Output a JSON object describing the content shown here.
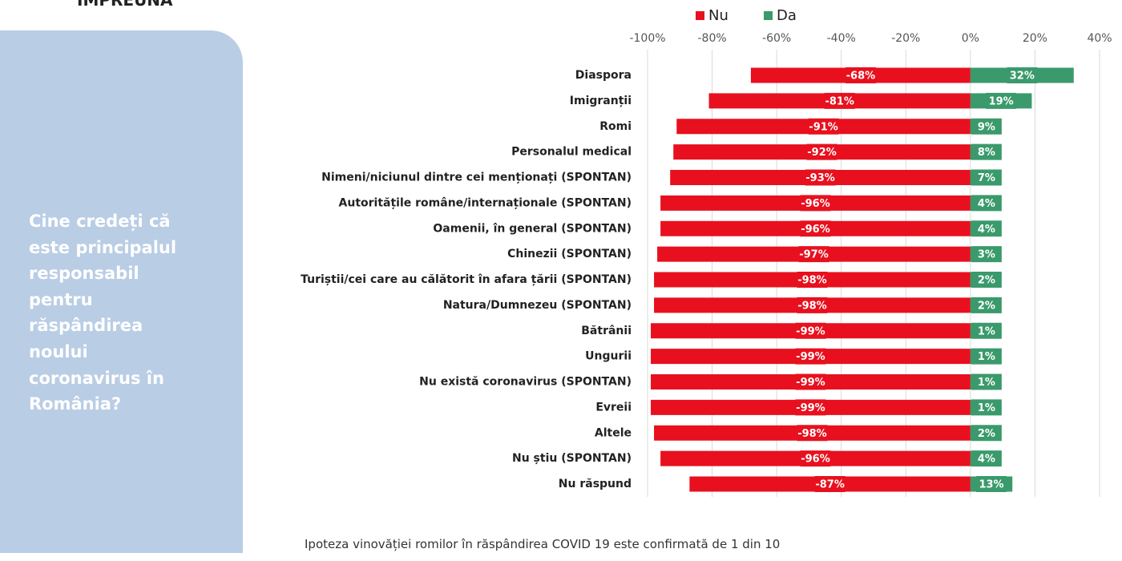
{
  "header": {
    "title": "ÎMPREUNĂ"
  },
  "panel": {
    "question": "Cine credeți că este principalul responsabil pentru răspândirea noului coronavirus în România?"
  },
  "chart_data": {
    "type": "bar",
    "orientation": "horizontal",
    "stacked": true,
    "categories": [
      "Diaspora",
      "Imigranții",
      "Romi",
      "Personalul medical",
      "Nimeni/niciunul dintre cei menționați (SPONTAN)",
      "Autoritățile române/internaționale (SPONTAN)",
      "Oamenii, în general (SPONTAN)",
      "Chinezii (SPONTAN)",
      "Turiștii/cei care au călătorit în afara țării (SPONTAN)",
      "Natura/Dumnezeu (SPONTAN)",
      "Bătrânii",
      "Ungurii",
      "Nu există coronavirus (SPONTAN)",
      "Evreii",
      "Altele",
      "Nu știu (SPONTAN)",
      "Nu răspund"
    ],
    "series": [
      {
        "name": "Nu",
        "color": "#e8101e",
        "values": [
          -68,
          -81,
          -91,
          -92,
          -93,
          -96,
          -96,
          -97,
          -98,
          -98,
          -99,
          -99,
          -99,
          -99,
          -98,
          -96,
          -87
        ],
        "value_labels": [
          "-68%",
          "-81%",
          "-91%",
          "-92%",
          "-93%",
          "-96%",
          "-96%",
          "-97%",
          "-98%",
          "-98%",
          "-99%",
          "-99%",
          "-99%",
          "-99%",
          "-98%",
          "-96%",
          "-87%"
        ]
      },
      {
        "name": "Da",
        "color": "#3a9a6c",
        "values": [
          32,
          19,
          9,
          8,
          7,
          4,
          4,
          3,
          2,
          2,
          1,
          1,
          1,
          1,
          2,
          4,
          13
        ],
        "value_labels": [
          "32%",
          "19%",
          "9%",
          "8%",
          "7%",
          "4%",
          "4%",
          "3%",
          "2%",
          "2%",
          "1%",
          "1%",
          "1%",
          "1%",
          "2%",
          "4%",
          "13%"
        ]
      }
    ],
    "xlim": [
      -100,
      40
    ],
    "xticks": [
      {
        "value": -100,
        "label": "-100%"
      },
      {
        "value": -80,
        "label": "-80%"
      },
      {
        "value": -60,
        "label": "-60%"
      },
      {
        "value": -40,
        "label": "-40%"
      },
      {
        "value": -20,
        "label": "-20%"
      },
      {
        "value": 0,
        "label": "0%"
      },
      {
        "value": 20,
        "label": "20%"
      },
      {
        "value": 40,
        "label": "40%"
      }
    ],
    "grid": true,
    "legend": "top"
  },
  "footer": {
    "text": "Ipoteza vinovăției romilor în răspândirea COVID 19 este confirmată de 1 din 10"
  }
}
